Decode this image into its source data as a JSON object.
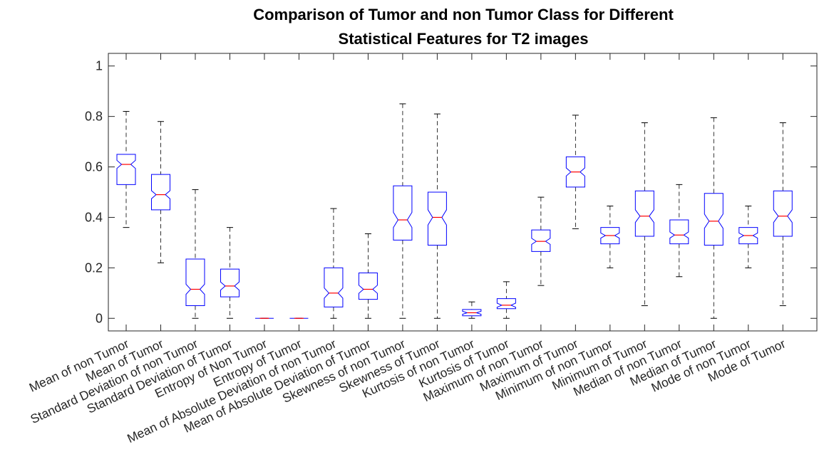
{
  "chart_data": {
    "type": "boxplot",
    "title": [
      "Comparison of Tumor and non Tumor Class for Different",
      "Statistical Features for T2 images"
    ],
    "xlabel": "",
    "ylabel": "",
    "ylim": [
      -0.05,
      1.05
    ],
    "yticks": [
      0,
      0.2,
      0.4,
      0.6,
      0.8,
      1
    ],
    "ytick_labels": [
      "0",
      "0.2",
      "0.4",
      "0.6",
      "0.8",
      "1"
    ],
    "grid": false,
    "notched": true,
    "colors": {
      "box": "#0000ff",
      "median": "#ff0000",
      "whisker": "#000000",
      "axes": "#262626"
    },
    "categories": [
      "Mean of non Tumor",
      "Mean of Tumor",
      "Standard Deviation of non Tumor",
      "Standard Deviation of Tumor",
      "Entropy of Non Tumor",
      "Entropy of Tumor",
      "Mean of Absolute Deviation of non Tumor",
      "Mean of Absolute Deviation of Tumor",
      "Skewness of non Tumor",
      "Skewness of Tumor",
      "Kurtosis of non Tumor",
      "Kurtosis of Tumor",
      "Maximum of non Tumor",
      "Maximum of Tumor",
      "Minimum of non Tumor",
      "Minimum of Tumor",
      "Median of non Tumor",
      "Median of Tumor",
      "Mode of non Tumor",
      "Mode of Tumor"
    ],
    "boxes": [
      {
        "min": 0.36,
        "q1": 0.53,
        "median": 0.61,
        "q3": 0.65,
        "max": 0.82,
        "notch": 0.016
      },
      {
        "min": 0.22,
        "q1": 0.43,
        "median": 0.49,
        "q3": 0.57,
        "max": 0.78,
        "notch": 0.016
      },
      {
        "min": 0.0,
        "q1": 0.05,
        "median": 0.115,
        "q3": 0.235,
        "max": 0.51,
        "notch": 0.02
      },
      {
        "min": 0.0,
        "q1": 0.085,
        "median": 0.128,
        "q3": 0.195,
        "max": 0.36,
        "notch": 0.016
      },
      {
        "min": 0.0,
        "q1": 0.0,
        "median": 0.0,
        "q3": 0.0,
        "max": 0.0,
        "notch": 0.0
      },
      {
        "min": 0.0,
        "q1": 0.0,
        "median": 0.0,
        "q3": 0.0,
        "max": 0.0,
        "notch": 0.0
      },
      {
        "min": 0.0,
        "q1": 0.045,
        "median": 0.1,
        "q3": 0.2,
        "max": 0.435,
        "notch": 0.02
      },
      {
        "min": 0.0,
        "q1": 0.075,
        "median": 0.115,
        "q3": 0.18,
        "max": 0.335,
        "notch": 0.016
      },
      {
        "min": 0.0,
        "q1": 0.31,
        "median": 0.39,
        "q3": 0.525,
        "max": 0.85,
        "notch": 0.03
      },
      {
        "min": 0.0,
        "q1": 0.29,
        "median": 0.4,
        "q3": 0.5,
        "max": 0.81,
        "notch": 0.03
      },
      {
        "min": 0.0,
        "q1": 0.01,
        "median": 0.022,
        "q3": 0.035,
        "max": 0.065,
        "notch": 0.006
      },
      {
        "min": 0.0,
        "q1": 0.038,
        "median": 0.052,
        "q3": 0.078,
        "max": 0.145,
        "notch": 0.008
      },
      {
        "min": 0.13,
        "q1": 0.265,
        "median": 0.305,
        "q3": 0.35,
        "max": 0.48,
        "notch": 0.012
      },
      {
        "min": 0.355,
        "q1": 0.52,
        "median": 0.58,
        "q3": 0.64,
        "max": 0.805,
        "notch": 0.016
      },
      {
        "min": 0.2,
        "q1": 0.295,
        "median": 0.328,
        "q3": 0.36,
        "max": 0.445,
        "notch": 0.01
      },
      {
        "min": 0.05,
        "q1": 0.325,
        "median": 0.405,
        "q3": 0.505,
        "max": 0.775,
        "notch": 0.025
      },
      {
        "min": 0.165,
        "q1": 0.295,
        "median": 0.33,
        "q3": 0.39,
        "max": 0.53,
        "notch": 0.012
      },
      {
        "min": 0.0,
        "q1": 0.29,
        "median": 0.385,
        "q3": 0.495,
        "max": 0.795,
        "notch": 0.028
      },
      {
        "min": 0.2,
        "q1": 0.295,
        "median": 0.328,
        "q3": 0.36,
        "max": 0.445,
        "notch": 0.01
      },
      {
        "min": 0.05,
        "q1": 0.325,
        "median": 0.405,
        "q3": 0.505,
        "max": 0.775,
        "notch": 0.025
      }
    ]
  }
}
